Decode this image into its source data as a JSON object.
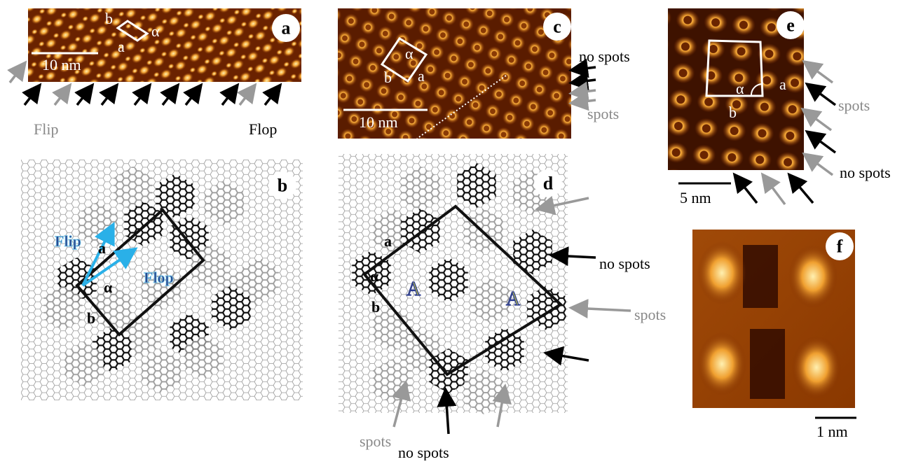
{
  "panels": [
    {
      "label": "a",
      "scale_bar": "10 nm",
      "cell_labels": [
        "b",
        "a",
        "α"
      ],
      "captions": [
        "Flip",
        "Flop"
      ]
    },
    {
      "label": "b",
      "cell_labels": [
        "a",
        "α",
        "b"
      ],
      "vectors": [
        "Flip",
        "Flop"
      ]
    },
    {
      "label": "c",
      "scale_bar": "10 nm",
      "cell_labels": [
        "α",
        "b",
        "a"
      ],
      "annotations": [
        "no spots",
        "spots"
      ]
    },
    {
      "label": "d",
      "cell_labels": [
        "a",
        "α",
        "b"
      ],
      "domains": [
        "A",
        "A"
      ],
      "annotations": [
        "no spots",
        "spots",
        "spots",
        "no spots"
      ]
    },
    {
      "label": "e",
      "cell_labels": [
        "α",
        "a",
        "b"
      ],
      "scale_bar": "5 nm",
      "annotations": [
        "spots",
        "no spots"
      ]
    },
    {
      "label": "f",
      "scale_bar": "1 nm"
    }
  ]
}
